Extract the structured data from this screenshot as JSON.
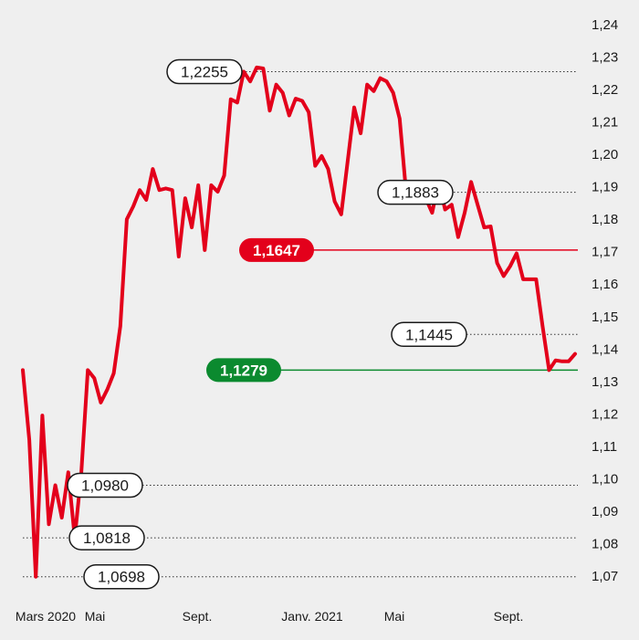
{
  "chart_data": {
    "type": "line",
    "title": "",
    "xlabel": "",
    "ylabel": "",
    "ylim": [
      1.07,
      1.24
    ],
    "y_ticks": [
      "1,24",
      "1,23",
      "1,22",
      "1,21",
      "1,20",
      "1,19",
      "1,18",
      "1,17",
      "1,16",
      "1,15",
      "1,14",
      "1,13",
      "1,12",
      "1,11",
      "1,10",
      "1,09",
      "1,08",
      "1,07"
    ],
    "x_ticks": [
      "Mars 2020",
      "Mai",
      "Sept.",
      "Janv. 2021",
      "Mai",
      "Sept."
    ],
    "y_axis_position": "right",
    "grid": false,
    "line_color": "#e3001b",
    "series": [
      {
        "values": [
          1.1335,
          1.112,
          1.0698,
          1.1195,
          1.086,
          1.098,
          1.088,
          1.102,
          1.0818,
          1.102,
          1.1335,
          1.131,
          1.1235,
          1.1275,
          1.1325,
          1.147,
          1.18,
          1.184,
          1.189,
          1.186,
          1.1955,
          1.189,
          1.1895,
          1.189,
          1.1685,
          1.1865,
          1.1775,
          1.1905,
          1.1705,
          1.1905,
          1.1885,
          1.1935,
          1.217,
          1.216,
          1.2255,
          1.2225,
          1.2268,
          1.2265,
          1.2135,
          1.2215,
          1.219,
          1.212,
          1.2172,
          1.2165,
          1.213,
          1.1965,
          1.1995,
          1.1955,
          1.1855,
          1.1815,
          1.198,
          1.2145,
          1.2065,
          1.2215,
          1.2195,
          1.2235,
          1.2225,
          1.219,
          1.211,
          1.1883,
          1.1895,
          1.1895,
          1.1865,
          1.182,
          1.1915,
          1.183,
          1.1845,
          1.1745,
          1.182,
          1.1915,
          1.1845,
          1.1775,
          1.1778,
          1.1665,
          1.1625,
          1.1655,
          1.1695,
          1.1615,
          1.1615,
          1.1615,
          1.147,
          1.1335,
          1.1365,
          1.1362,
          1.1362,
          1.1385
        ]
      }
    ],
    "reference_lines": [
      {
        "value": 1.1647,
        "label": "1,1647",
        "color": "#e3001b",
        "style": "solid",
        "label_style": "filled"
      },
      {
        "value": 1.1279,
        "label": "1,1279",
        "color": "#0b8a2f",
        "style": "solid",
        "label_style": "filled"
      }
    ],
    "annotations": [
      {
        "label": "1,2255",
        "value": 1.2255,
        "style": "dotted"
      },
      {
        "label": "1,1883",
        "value": 1.1883,
        "style": "dotted"
      },
      {
        "label": "1,1445",
        "value": 1.1445,
        "style": "dotted"
      },
      {
        "label": "1,0980",
        "value": 1.098,
        "style": "dotted"
      },
      {
        "label": "1,0818",
        "value": 1.0818,
        "style": "dotted"
      },
      {
        "label": "1,0698",
        "value": 1.0698,
        "style": "dotted"
      }
    ]
  }
}
